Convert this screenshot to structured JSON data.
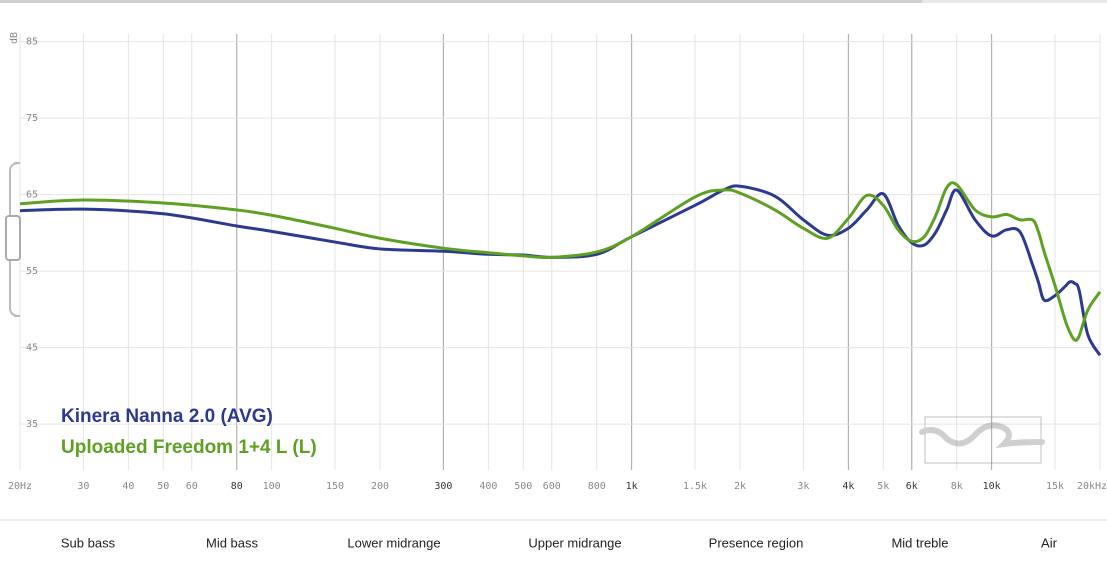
{
  "chart_data": {
    "type": "line",
    "y_label": "dB",
    "log_x": true,
    "xlim": [
      20,
      20000
    ],
    "ylim": [
      29,
      86
    ],
    "xticks": [
      {
        "value": 20,
        "label": "20Hz"
      },
      30,
      40,
      50,
      60,
      80,
      100,
      150,
      200,
      300,
      400,
      500,
      600,
      800,
      {
        "value": 1000,
        "label": "1k"
      },
      {
        "value": 1500,
        "label": "1.5k"
      },
      {
        "value": 2000,
        "label": "2k"
      },
      {
        "value": 3000,
        "label": "3k"
      },
      {
        "value": 4000,
        "label": "4k"
      },
      {
        "value": 5000,
        "label": "5k"
      },
      {
        "value": 6000,
        "label": "6k"
      },
      {
        "value": 8000,
        "label": "8k"
      },
      {
        "value": 10000,
        "label": "10k"
      },
      {
        "value": 15000,
        "label": "15k"
      },
      {
        "value": 20000,
        "label": "20kHz"
      }
    ],
    "emphasized_xticks": [
      80,
      300,
      1000,
      4000,
      6000,
      10000
    ],
    "yticks": [
      35,
      45,
      55,
      65,
      75,
      85
    ],
    "x": [
      20,
      30,
      50,
      80,
      100,
      150,
      200,
      300,
      400,
      500,
      600,
      800,
      1000,
      1500,
      1800,
      2000,
      2500,
      3000,
      3500,
      4000,
      4500,
      5000,
      5500,
      6000,
      6500,
      7000,
      7500,
      8000,
      9000,
      10000,
      11000,
      12000,
      13000,
      13500,
      14000,
      15000,
      16000,
      16500,
      17000,
      17500,
      18500,
      20000
    ],
    "series": [
      {
        "name": "Kinera Nanna 2.0 (AVG)",
        "color": "#2b3a8f",
        "values": [
          62.9,
          63.1,
          62.5,
          60.9,
          60.2,
          58.8,
          57.9,
          57.6,
          57.2,
          57.1,
          56.8,
          57.2,
          59.5,
          63.6,
          65.6,
          66.1,
          64.8,
          61.7,
          59.7,
          60.6,
          63.0,
          65.1,
          61.0,
          58.7,
          58.4,
          60.1,
          63.0,
          65.6,
          61.7,
          59.6,
          60.4,
          60.1,
          55.8,
          53.5,
          51.2,
          51.8,
          53.0,
          53.6,
          53.4,
          52.5,
          46.7,
          44.0
        ]
      },
      {
        "name": "Uploaded Freedom 1+4 L (L)",
        "color": "#5ea023",
        "values": [
          63.8,
          64.3,
          63.9,
          63.0,
          62.3,
          60.6,
          59.3,
          58.0,
          57.4,
          57.0,
          56.8,
          57.5,
          59.5,
          64.7,
          65.6,
          65.2,
          63.0,
          60.6,
          59.3,
          61.9,
          64.9,
          63.6,
          60.4,
          58.9,
          59.5,
          62.3,
          65.9,
          66.3,
          63.0,
          62.1,
          62.4,
          61.7,
          61.7,
          60.1,
          57.5,
          53.1,
          48.6,
          47.0,
          46.0,
          46.5,
          49.9,
          52.3
        ]
      }
    ],
    "bands": [
      "Sub bass",
      "Mid bass",
      "Lower midrange",
      "Upper midrange",
      "Presence region",
      "Mid treble",
      "Air"
    ]
  }
}
